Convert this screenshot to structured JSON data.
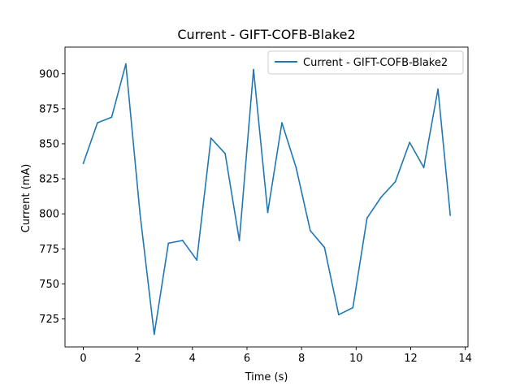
{
  "chart_data": {
    "type": "line",
    "title": "Current - GIFT-COFB-Blake2",
    "xlabel": "Time (s)",
    "ylabel": "Current (mA)",
    "xlim": [
      -0.67,
      14.1
    ],
    "ylim": [
      705,
      919
    ],
    "xticks": [
      0,
      2,
      4,
      6,
      8,
      10,
      12,
      14
    ],
    "yticks": [
      725,
      750,
      775,
      800,
      825,
      850,
      875,
      900
    ],
    "grid": false,
    "legend_position": "top-right",
    "colors": {
      "series": "#1f77b4"
    },
    "series": [
      {
        "name": "Current - GIFT-COFB-Blake2",
        "x": [
          0.0,
          0.52,
          1.04,
          1.56,
          2.08,
          2.6,
          3.12,
          3.64,
          4.16,
          4.68,
          5.2,
          5.72,
          6.24,
          6.76,
          7.28,
          7.8,
          8.32,
          8.84,
          9.36,
          9.88,
          10.4,
          10.92,
          11.44,
          11.96,
          12.48,
          13.0,
          13.45
        ],
        "values": [
          836,
          865,
          869,
          907,
          800,
          714,
          779,
          781,
          767,
          854,
          843,
          781,
          903,
          801,
          865,
          833,
          788,
          776,
          728,
          733,
          797,
          812,
          823,
          851,
          833,
          889,
          799
        ]
      }
    ]
  }
}
